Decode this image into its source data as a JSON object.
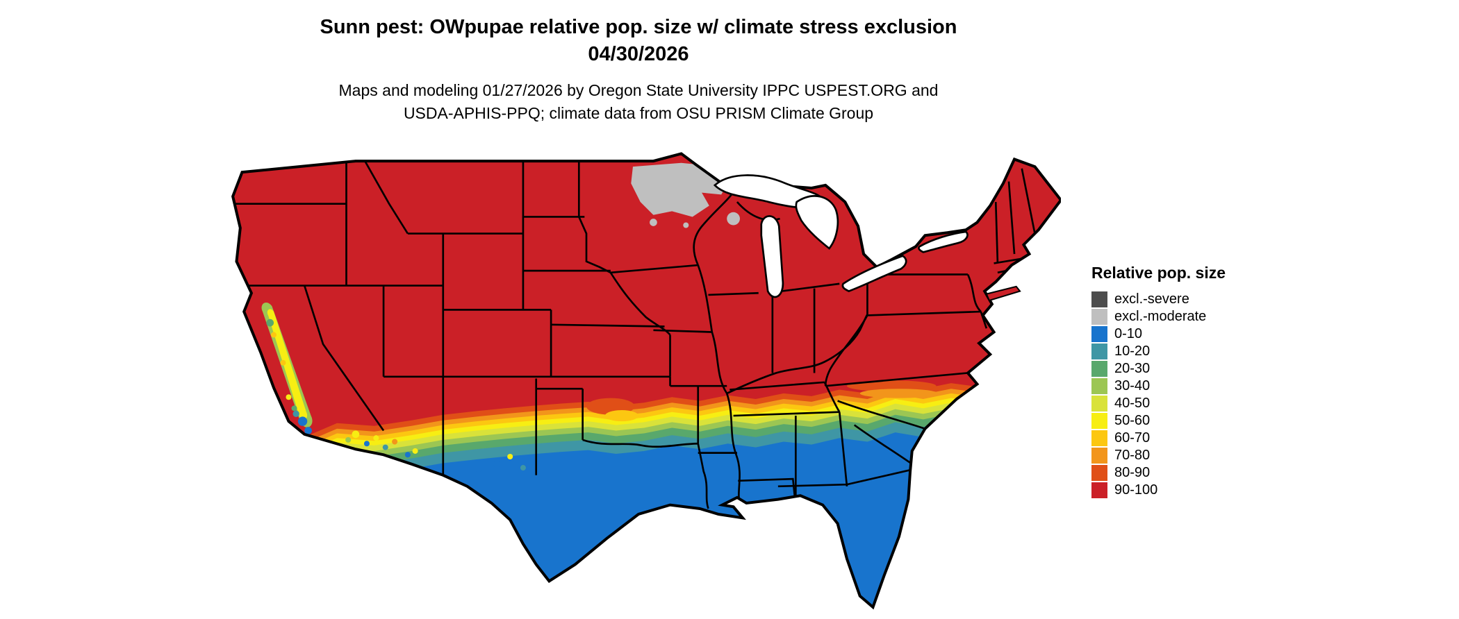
{
  "title": {
    "line1": "Sunn pest: OWpupae relative pop. size w/ climate stress exclusion",
    "line2": "04/30/2026"
  },
  "subtitle": {
    "line1": "Maps and modeling 01/27/2026 by Oregon State University IPPC USPEST.ORG and",
    "line2": "USDA-APHIS-PPQ; climate data from OSU PRISM Climate Group"
  },
  "legend": {
    "title": "Relative pop. size",
    "items": [
      {
        "label": "excl.-severe",
        "color_key": "excl_severe"
      },
      {
        "label": "excl.-moderate",
        "color_key": "excl_moderate"
      },
      {
        "label": "0-10",
        "color_key": "b0_10"
      },
      {
        "label": "10-20",
        "color_key": "b10_20"
      },
      {
        "label": "20-30",
        "color_key": "b20_30"
      },
      {
        "label": "30-40",
        "color_key": "b30_40"
      },
      {
        "label": "40-50",
        "color_key": "b40_50"
      },
      {
        "label": "50-60",
        "color_key": "b50_60"
      },
      {
        "label": "60-70",
        "color_key": "b60_70"
      },
      {
        "label": "70-80",
        "color_key": "b70_80"
      },
      {
        "label": "80-90",
        "color_key": "b80_90"
      },
      {
        "label": "90-100",
        "color_key": "b90_100"
      }
    ]
  },
  "palette": {
    "excl_severe": "#4d4d4d",
    "excl_moderate": "#bfbfbf",
    "b0_10": "#1874cd",
    "b10_20": "#3f96a5",
    "b20_30": "#59a86c",
    "b30_40": "#9cc653",
    "b40_50": "#d9e23a",
    "b50_60": "#f7ee13",
    "b60_70": "#fcc711",
    "b70_80": "#f2951b",
    "b80_90": "#e04f17",
    "b90_100": "#cb2027",
    "border": "#000000",
    "water": "#ffffff"
  }
}
